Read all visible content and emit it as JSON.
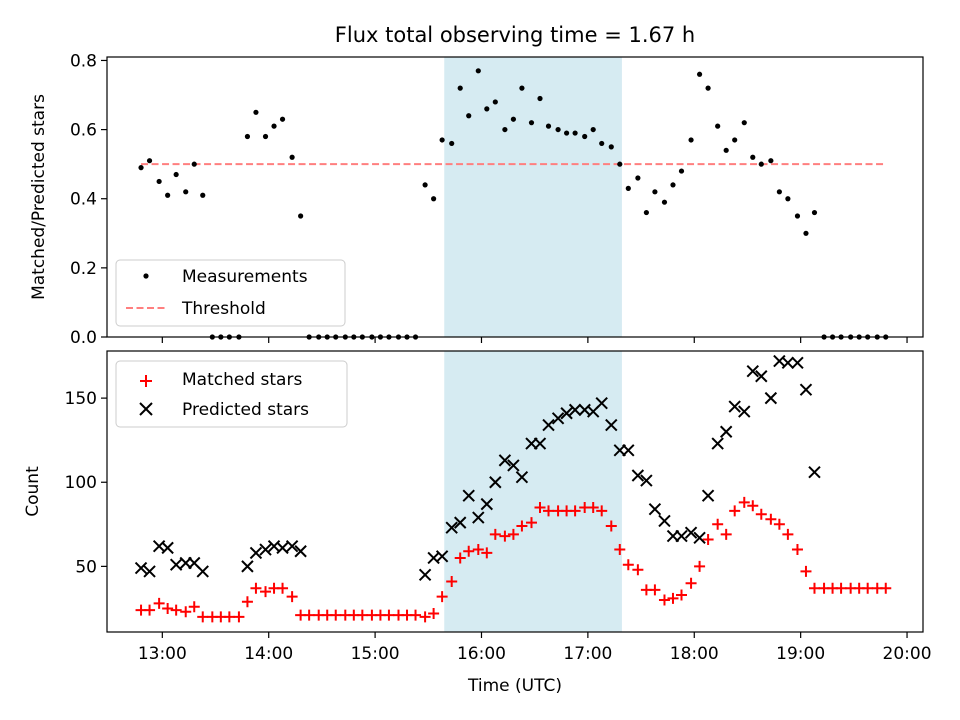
{
  "figure": {
    "title": "Flux total observing time = 1.67 h"
  },
  "colors": {
    "measurement": "#000000",
    "threshold": "#ff7f7f",
    "matched": "#ff0000",
    "predicted": "#000000",
    "span": "#add8e6"
  },
  "chart_data": [
    {
      "type": "scatter",
      "ylabel": "Matched/Predicted stars",
      "xlim": [
        12.48,
        20.15
      ],
      "ylim": [
        0,
        0.81
      ],
      "yticks": [
        "0.0",
        "0.2",
        "0.4",
        "0.6",
        "0.8"
      ],
      "ytick_values": [
        0,
        0.2,
        0.4,
        0.6,
        0.8
      ],
      "highlight_span": [
        15.65,
        17.32
      ],
      "legend": {
        "placement": "lower-left",
        "entries": [
          "Measurements",
          "Threshold"
        ]
      },
      "threshold": {
        "name": "Threshold",
        "y": 0.5,
        "x": [
          12.8,
          19.8
        ]
      },
      "series": [
        {
          "name": "Measurements",
          "points": [
            [
              12.8,
              0.49
            ],
            [
              12.88,
              0.51
            ],
            [
              12.97,
              0.45
            ],
            [
              13.05,
              0.41
            ],
            [
              13.13,
              0.47
            ],
            [
              13.22,
              0.42
            ],
            [
              13.3,
              0.5
            ],
            [
              13.38,
              0.41
            ],
            [
              13.47,
              0
            ],
            [
              13.55,
              0
            ],
            [
              13.63,
              0
            ],
            [
              13.72,
              0
            ],
            [
              13.8,
              0.58
            ],
            [
              13.88,
              0.65
            ],
            [
              13.97,
              0.58
            ],
            [
              14.05,
              0.61
            ],
            [
              14.13,
              0.63
            ],
            [
              14.22,
              0.52
            ],
            [
              14.3,
              0.35
            ],
            [
              14.38,
              0
            ],
            [
              14.47,
              0
            ],
            [
              14.55,
              0
            ],
            [
              14.63,
              0
            ],
            [
              14.72,
              0
            ],
            [
              14.8,
              0
            ],
            [
              14.88,
              0
            ],
            [
              14.97,
              0
            ],
            [
              15.05,
              0
            ],
            [
              15.13,
              0
            ],
            [
              15.22,
              0
            ],
            [
              15.3,
              0
            ],
            [
              15.38,
              0
            ],
            [
              15.47,
              0.44
            ],
            [
              15.55,
              0.4
            ],
            [
              15.63,
              0.57
            ],
            [
              15.72,
              0.56
            ],
            [
              15.8,
              0.72
            ],
            [
              15.88,
              0.64
            ],
            [
              15.97,
              0.77
            ],
            [
              16.05,
              0.66
            ],
            [
              16.13,
              0.68
            ],
            [
              16.22,
              0.6
            ],
            [
              16.3,
              0.63
            ],
            [
              16.38,
              0.72
            ],
            [
              16.47,
              0.62
            ],
            [
              16.55,
              0.69
            ],
            [
              16.63,
              0.61
            ],
            [
              16.72,
              0.6
            ],
            [
              16.8,
              0.59
            ],
            [
              16.88,
              0.59
            ],
            [
              16.97,
              0.58
            ],
            [
              17.05,
              0.6
            ],
            [
              17.13,
              0.56
            ],
            [
              17.22,
              0.55
            ],
            [
              17.3,
              0.5
            ],
            [
              17.38,
              0.43
            ],
            [
              17.47,
              0.46
            ],
            [
              17.55,
              0.36
            ],
            [
              17.63,
              0.42
            ],
            [
              17.72,
              0.39
            ],
            [
              17.8,
              0.44
            ],
            [
              17.88,
              0.48
            ],
            [
              17.97,
              0.57
            ],
            [
              18.05,
              0.76
            ],
            [
              18.13,
              0.72
            ],
            [
              18.22,
              0.61
            ],
            [
              18.3,
              0.54
            ],
            [
              18.38,
              0.57
            ],
            [
              18.47,
              0.62
            ],
            [
              18.55,
              0.52
            ],
            [
              18.63,
              0.5
            ],
            [
              18.72,
              0.51
            ],
            [
              18.8,
              0.42
            ],
            [
              18.88,
              0.4
            ],
            [
              18.97,
              0.35
            ],
            [
              19.05,
              0.3
            ],
            [
              19.13,
              0.36
            ],
            [
              19.22,
              0
            ],
            [
              19.3,
              0
            ],
            [
              19.38,
              0
            ],
            [
              19.47,
              0
            ],
            [
              19.55,
              0
            ],
            [
              19.63,
              0
            ],
            [
              19.72,
              0
            ],
            [
              19.8,
              0
            ]
          ]
        }
      ]
    },
    {
      "type": "scatter",
      "xlabel": "Time (UTC)",
      "ylabel": "Count",
      "xlim": [
        12.48,
        20.15
      ],
      "ylim": [
        11,
        178
      ],
      "xticks": [
        "13:00",
        "14:00",
        "15:00",
        "16:00",
        "17:00",
        "18:00",
        "19:00",
        "20:00"
      ],
      "xtick_values": [
        13,
        14,
        15,
        16,
        17,
        18,
        19,
        20
      ],
      "yticks": [
        "50",
        "100",
        "150"
      ],
      "ytick_values": [
        50,
        100,
        150
      ],
      "highlight_span": [
        15.65,
        17.32
      ],
      "legend": {
        "placement": "upper-left",
        "entries": [
          "Matched stars",
          "Predicted stars"
        ]
      },
      "series": [
        {
          "name": "Matched stars",
          "points": [
            [
              12.8,
              24
            ],
            [
              12.88,
              24
            ],
            [
              12.97,
              28
            ],
            [
              13.05,
              25
            ],
            [
              13.13,
              24
            ],
            [
              13.22,
              23
            ],
            [
              13.3,
              26
            ],
            [
              13.38,
              20
            ],
            [
              13.47,
              20
            ],
            [
              13.55,
              20
            ],
            [
              13.63,
              20
            ],
            [
              13.72,
              20
            ],
            [
              13.8,
              29
            ],
            [
              13.88,
              37
            ],
            [
              13.97,
              35
            ],
            [
              14.05,
              37
            ],
            [
              14.13,
              37
            ],
            [
              14.22,
              32
            ],
            [
              14.3,
              21
            ],
            [
              14.38,
              21
            ],
            [
              14.47,
              21
            ],
            [
              14.55,
              21
            ],
            [
              14.63,
              21
            ],
            [
              14.72,
              21
            ],
            [
              14.8,
              21
            ],
            [
              14.88,
              21
            ],
            [
              14.97,
              21
            ],
            [
              15.05,
              21
            ],
            [
              15.13,
              21
            ],
            [
              15.22,
              21
            ],
            [
              15.3,
              21
            ],
            [
              15.38,
              21
            ],
            [
              15.47,
              20
            ],
            [
              15.55,
              22
            ],
            [
              15.63,
              32
            ],
            [
              15.72,
              41
            ],
            [
              15.8,
              55
            ],
            [
              15.88,
              59
            ],
            [
              15.97,
              60
            ],
            [
              16.05,
              58
            ],
            [
              16.13,
              69
            ],
            [
              16.22,
              68
            ],
            [
              16.3,
              69
            ],
            [
              16.38,
              74
            ],
            [
              16.47,
              76
            ],
            [
              16.55,
              85
            ],
            [
              16.63,
              83
            ],
            [
              16.72,
              83
            ],
            [
              16.8,
              83
            ],
            [
              16.88,
              83
            ],
            [
              16.97,
              85
            ],
            [
              17.05,
              85
            ],
            [
              17.13,
              83
            ],
            [
              17.22,
              74
            ],
            [
              17.3,
              60
            ],
            [
              17.38,
              51
            ],
            [
              17.47,
              48
            ],
            [
              17.55,
              36
            ],
            [
              17.63,
              36
            ],
            [
              17.72,
              30
            ],
            [
              17.8,
              31
            ],
            [
              17.88,
              33
            ],
            [
              17.97,
              40
            ],
            [
              18.05,
              50
            ],
            [
              18.13,
              66
            ],
            [
              18.22,
              75
            ],
            [
              18.3,
              69
            ],
            [
              18.38,
              83
            ],
            [
              18.47,
              88
            ],
            [
              18.55,
              86
            ],
            [
              18.63,
              81
            ],
            [
              18.72,
              78
            ],
            [
              18.8,
              75
            ],
            [
              18.88,
              69
            ],
            [
              18.97,
              60
            ],
            [
              19.05,
              47
            ],
            [
              19.13,
              37
            ],
            [
              19.22,
              37
            ],
            [
              19.3,
              37
            ],
            [
              19.38,
              37
            ],
            [
              19.47,
              37
            ],
            [
              19.55,
              37
            ],
            [
              19.63,
              37
            ],
            [
              19.72,
              37
            ],
            [
              19.8,
              37
            ]
          ]
        },
        {
          "name": "Predicted stars",
          "points": [
            [
              12.8,
              49
            ],
            [
              12.88,
              47
            ],
            [
              12.97,
              62
            ],
            [
              13.05,
              61
            ],
            [
              13.13,
              51
            ],
            [
              13.22,
              52
            ],
            [
              13.3,
              52
            ],
            [
              13.38,
              47
            ],
            [
              13.8,
              50
            ],
            [
              13.88,
              58
            ],
            [
              13.97,
              60
            ],
            [
              14.05,
              62
            ],
            [
              14.13,
              61
            ],
            [
              14.22,
              62
            ],
            [
              14.3,
              59
            ],
            [
              15.47,
              45
            ],
            [
              15.55,
              55
            ],
            [
              15.63,
              56
            ],
            [
              15.72,
              73
            ],
            [
              15.8,
              76
            ],
            [
              15.88,
              92
            ],
            [
              15.97,
              79
            ],
            [
              16.05,
              87
            ],
            [
              16.13,
              100
            ],
            [
              16.22,
              113
            ],
            [
              16.3,
              110
            ],
            [
              16.38,
              103
            ],
            [
              16.47,
              123
            ],
            [
              16.55,
              123
            ],
            [
              16.63,
              134
            ],
            [
              16.72,
              138
            ],
            [
              16.8,
              141
            ],
            [
              16.88,
              143
            ],
            [
              16.97,
              143
            ],
            [
              17.05,
              142
            ],
            [
              17.13,
              147
            ],
            [
              17.22,
              134
            ],
            [
              17.3,
              119
            ],
            [
              17.38,
              119
            ],
            [
              17.47,
              104
            ],
            [
              17.55,
              101
            ],
            [
              17.63,
              84
            ],
            [
              17.72,
              77
            ],
            [
              17.8,
              68
            ],
            [
              17.88,
              68
            ],
            [
              17.97,
              70
            ],
            [
              18.05,
              67
            ],
            [
              18.13,
              92
            ],
            [
              18.22,
              123
            ],
            [
              18.3,
              130
            ],
            [
              18.38,
              145
            ],
            [
              18.47,
              142
            ],
            [
              18.55,
              166
            ],
            [
              18.63,
              163
            ],
            [
              18.72,
              150
            ],
            [
              18.8,
              172
            ],
            [
              18.88,
              171
            ],
            [
              18.97,
              171
            ],
            [
              19.05,
              155
            ],
            [
              19.13,
              106
            ]
          ]
        }
      ]
    }
  ]
}
